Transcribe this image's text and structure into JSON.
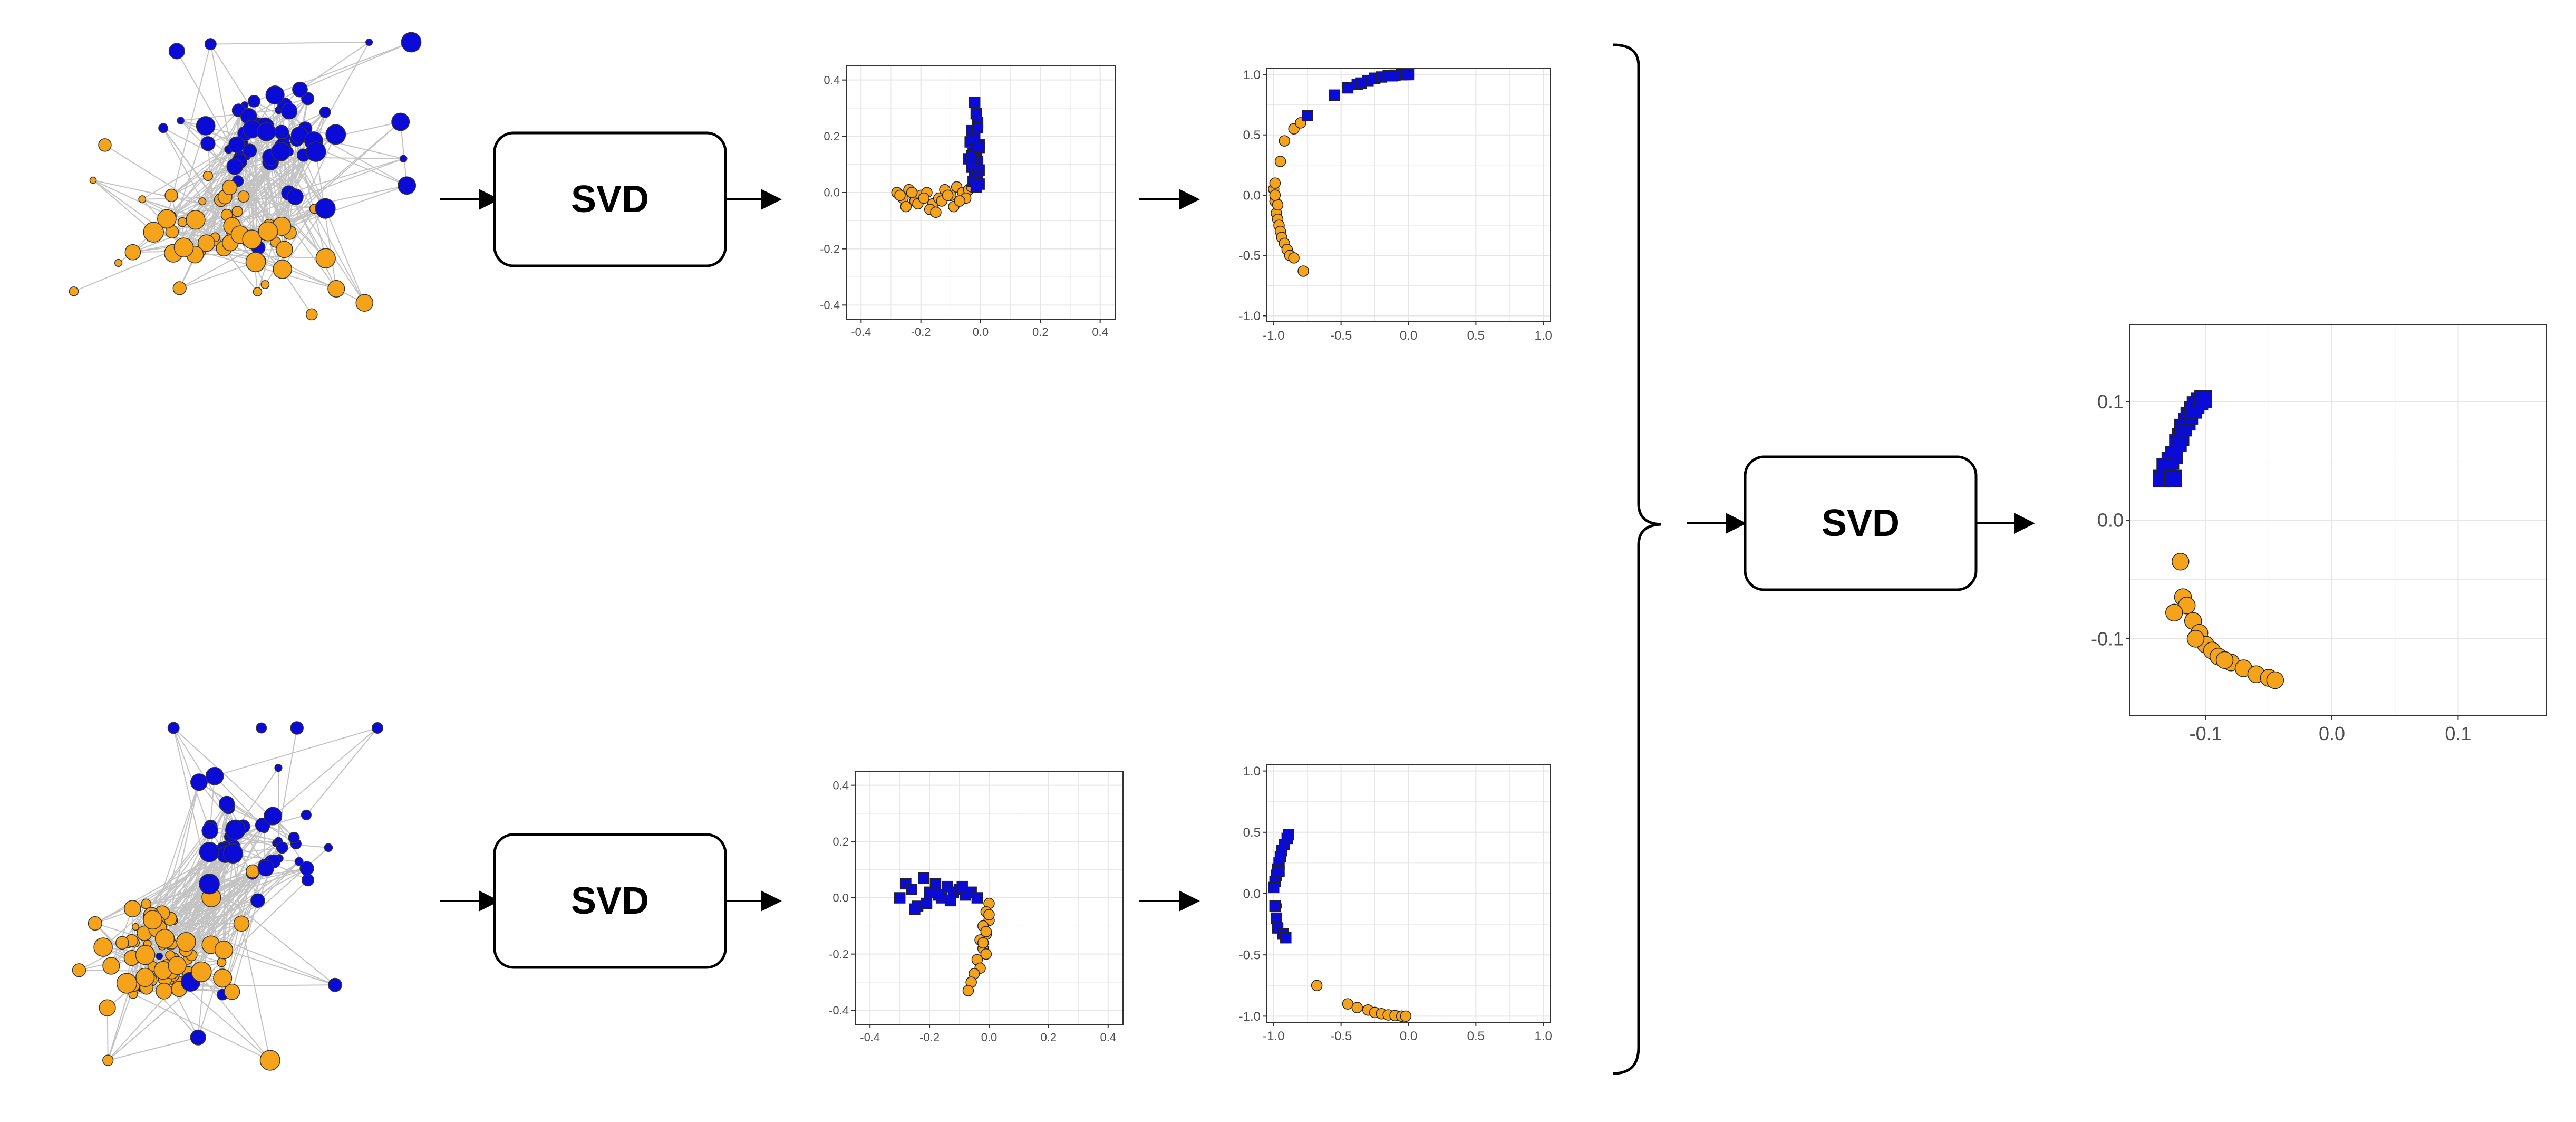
{
  "colors": {
    "blue": "#0B0BD8",
    "orange": "#F5A31A",
    "edge": "#BDBDBD",
    "grid": "#E6E6E6",
    "axis_text": "#4D4D4D"
  },
  "svd_label": "SVD",
  "networks": [
    {
      "name": "network-top",
      "blue_nodes": 55,
      "orange_nodes": 60
    },
    {
      "name": "network-bottom",
      "blue_nodes": 50,
      "orange_nodes": 70
    }
  ],
  "chart_data": [
    {
      "type": "scatter",
      "name": "top-svd-embedding",
      "xlim": [
        -0.45,
        0.45
      ],
      "ylim": [
        -0.45,
        0.45
      ],
      "xticks": [
        "-0.4",
        "-0.2",
        "0.0",
        "0.2",
        "0.4"
      ],
      "yticks": [
        "-0.4",
        "-0.2",
        "0.0",
        "0.2",
        "0.4"
      ],
      "grid": true,
      "series": [
        {
          "marker": "square",
          "color": "blue",
          "x": [
            -0.02,
            -0.015,
            -0.01,
            -0.03,
            -0.02,
            -0.035,
            -0.005,
            -0.015,
            -0.025,
            -0.04,
            -0.01,
            -0.02,
            -0.03,
            -0.005,
            -0.015,
            -0.02,
            -0.01,
            -0.025,
            -0.005,
            -0.015,
            -0.03,
            -0.02,
            -0.01,
            -0.005
          ],
          "y": [
            0.32,
            0.28,
            0.25,
            0.22,
            0.2,
            0.18,
            0.17,
            0.15,
            0.14,
            0.12,
            0.11,
            0.1,
            0.09,
            0.08,
            0.07,
            0.06,
            0.05,
            0.04,
            0.03,
            0.02,
            0.13,
            0.19,
            0.23,
            0.16
          ]
        },
        {
          "marker": "circle",
          "color": "orange",
          "x": [
            -0.28,
            -0.26,
            -0.24,
            -0.22,
            -0.2,
            -0.18,
            -0.16,
            -0.14,
            -0.12,
            -0.1,
            -0.08,
            -0.06,
            -0.04,
            -0.02,
            -0.25,
            -0.21,
            -0.17,
            -0.13,
            -0.09,
            -0.05,
            -0.03,
            -0.27,
            -0.23,
            -0.19,
            -0.15,
            -0.11,
            -0.07
          ],
          "y": [
            0.0,
            -0.02,
            0.01,
            -0.03,
            -0.01,
            0.0,
            -0.04,
            -0.02,
            0.01,
            -0.01,
            0.02,
            0.0,
            0.01,
            0.03,
            -0.05,
            -0.04,
            -0.06,
            -0.03,
            -0.05,
            -0.02,
            0.02,
            -0.01,
            0.0,
            -0.02,
            -0.07,
            -0.01,
            -0.03
          ]
        }
      ]
    },
    {
      "type": "scatter",
      "name": "top-normalized-embedding",
      "xlim": [
        -1.05,
        1.05
      ],
      "ylim": [
        -1.05,
        1.05
      ],
      "xticks": [
        "-1.0",
        "-0.5",
        "0.0",
        "0.5",
        "1.0"
      ],
      "yticks": [
        "-1.0",
        "-0.5",
        "0.0",
        "0.5",
        "1.0"
      ],
      "grid": true,
      "series": [
        {
          "marker": "square",
          "color": "blue",
          "x": [
            -0.75,
            -0.55,
            -0.45,
            -0.38,
            -0.3,
            -0.25,
            -0.2,
            -0.15,
            -0.1,
            -0.05,
            -0.02,
            0.0,
            -0.35,
            -0.12
          ],
          "y": [
            0.66,
            0.83,
            0.89,
            0.92,
            0.95,
            0.97,
            0.98,
            0.99,
            0.995,
            0.999,
            1.0,
            1.0,
            0.93,
            0.99
          ]
        },
        {
          "marker": "circle",
          "color": "orange",
          "x": [
            -1.0,
            -0.99,
            -0.99,
            -0.98,
            -0.97,
            -0.96,
            -0.95,
            -0.94,
            -0.92,
            -0.9,
            -0.88,
            -0.85,
            -0.78,
            -0.95,
            -0.92,
            -0.85,
            -0.8,
            -0.97,
            -0.99
          ],
          "y": [
            0.05,
            0.1,
            -0.05,
            -0.15,
            -0.2,
            -0.25,
            -0.3,
            -0.35,
            -0.4,
            -0.45,
            -0.5,
            -0.52,
            -0.63,
            0.28,
            0.45,
            0.55,
            0.6,
            -0.08,
            0.0
          ]
        }
      ]
    },
    {
      "type": "scatter",
      "name": "bottom-svd-embedding",
      "xlim": [
        -0.45,
        0.45
      ],
      "ylim": [
        -0.45,
        0.45
      ],
      "xticks": [
        "-0.4",
        "-0.2",
        "0.0",
        "0.2",
        "0.4"
      ],
      "yticks": [
        "-0.4",
        "-0.2",
        "0.0",
        "0.2",
        "0.4"
      ],
      "grid": true,
      "series": [
        {
          "marker": "square",
          "color": "blue",
          "x": [
            -0.3,
            -0.28,
            -0.26,
            -0.24,
            -0.22,
            -0.2,
            -0.18,
            -0.16,
            -0.14,
            -0.12,
            -0.1,
            -0.08,
            -0.06,
            -0.04,
            -0.25,
            -0.21,
            -0.17,
            -0.13,
            -0.09
          ],
          "y": [
            0.0,
            0.05,
            0.03,
            -0.03,
            0.07,
            0.02,
            0.05,
            0.0,
            0.04,
            0.02,
            0.03,
            0.01,
            0.02,
            0.0,
            -0.04,
            -0.02,
            0.01,
            -0.01,
            0.04
          ]
        },
        {
          "marker": "circle",
          "color": "orange",
          "x": [
            0.0,
            -0.01,
            0.0,
            -0.02,
            -0.01,
            -0.03,
            -0.02,
            -0.01,
            -0.04,
            -0.03,
            -0.05,
            -0.06,
            -0.07,
            0.0,
            -0.01,
            -0.02
          ],
          "y": [
            -0.02,
            -0.05,
            -0.08,
            -0.1,
            -0.13,
            -0.15,
            -0.18,
            -0.2,
            -0.22,
            -0.25,
            -0.27,
            -0.3,
            -0.33,
            -0.06,
            -0.12,
            -0.16
          ]
        }
      ]
    },
    {
      "type": "scatter",
      "name": "bottom-normalized-embedding",
      "xlim": [
        -1.05,
        1.05
      ],
      "ylim": [
        -1.05,
        1.05
      ],
      "xticks": [
        "-1.0",
        "-0.5",
        "0.0",
        "0.5",
        "1.0"
      ],
      "yticks": [
        "-1.0",
        "-0.5",
        "0.0",
        "0.5",
        "1.0"
      ],
      "grid": true,
      "series": [
        {
          "marker": "square",
          "color": "blue",
          "x": [
            -0.9,
            -0.92,
            -0.94,
            -0.95,
            -0.96,
            -0.97,
            -0.98,
            -0.99,
            -1.0,
            -0.99,
            -0.98,
            -0.97,
            -0.93,
            -0.91,
            -0.89,
            -0.96
          ],
          "y": [
            0.45,
            0.4,
            0.35,
            0.3,
            0.25,
            0.2,
            0.15,
            0.1,
            0.05,
            -0.1,
            -0.2,
            -0.28,
            -0.33,
            -0.36,
            0.48,
            0.18
          ]
        },
        {
          "marker": "circle",
          "color": "orange",
          "x": [
            -0.98,
            -0.68,
            -0.45,
            -0.38,
            -0.3,
            -0.25,
            -0.2,
            -0.15,
            -0.1,
            -0.05,
            -0.02
          ],
          "y": [
            -0.1,
            -0.75,
            -0.9,
            -0.93,
            -0.95,
            -0.97,
            -0.98,
            -0.99,
            -0.995,
            -1.0,
            -1.0
          ]
        }
      ]
    },
    {
      "type": "scatter",
      "name": "combined-svd-embedding",
      "xlim": [
        -0.16,
        0.17
      ],
      "ylim": [
        -0.165,
        0.165
      ],
      "xticks": [
        "-0.1",
        "0.0",
        "0.1"
      ],
      "yticks": [
        "-0.1",
        "0.0",
        "0.1"
      ],
      "grid": true,
      "series": [
        {
          "marker": "square",
          "color": "blue",
          "x": [
            -0.135,
            -0.13,
            -0.128,
            -0.125,
            -0.122,
            -0.12,
            -0.118,
            -0.115,
            -0.113,
            -0.11,
            -0.108,
            -0.105,
            -0.102,
            -0.132,
            -0.126
          ],
          "y": [
            0.035,
            0.04,
            0.05,
            0.055,
            0.065,
            0.07,
            0.078,
            0.083,
            0.088,
            0.093,
            0.097,
            0.1,
            0.102,
            0.045,
            0.035
          ]
        },
        {
          "marker": "circle",
          "color": "orange",
          "x": [
            -0.12,
            -0.118,
            -0.115,
            -0.11,
            -0.105,
            -0.1,
            -0.095,
            -0.09,
            -0.08,
            -0.07,
            -0.06,
            -0.05,
            -0.045,
            -0.125,
            -0.108,
            -0.085
          ],
          "y": [
            -0.035,
            -0.065,
            -0.072,
            -0.085,
            -0.095,
            -0.105,
            -0.11,
            -0.115,
            -0.12,
            -0.125,
            -0.13,
            -0.133,
            -0.135,
            -0.078,
            -0.1,
            -0.118
          ]
        }
      ]
    }
  ]
}
